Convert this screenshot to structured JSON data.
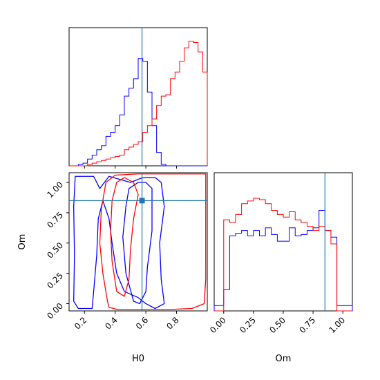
{
  "chart_data": {
    "type": "corner",
    "parameters": [
      "H0",
      "Om"
    ],
    "truth": {
      "H0": 0.575,
      "Om": 0.85,
      "color": "#1f77b4"
    },
    "colors": {
      "blue": "#0000ff",
      "red": "#ff0000",
      "truth": "#1f77b4"
    },
    "grid": false,
    "panels": [
      {
        "id": "H0_hist",
        "type": "step",
        "xlim": [
          0.1,
          1.0
        ],
        "xticks": [
          0.2,
          0.4,
          0.6,
          0.8
        ],
        "bin_edges": [
          0.1,
          0.13,
          0.16,
          0.19,
          0.22,
          0.25,
          0.28,
          0.31,
          0.34,
          0.37,
          0.4,
          0.43,
          0.46,
          0.49,
          0.52,
          0.55,
          0.58,
          0.61,
          0.64,
          0.67,
          0.7,
          0.73,
          0.76,
          0.79,
          0.82,
          0.85,
          0.88,
          0.91,
          0.94,
          0.97,
          1.0
        ],
        "series": [
          {
            "name": "",
            "color": "#0000ff",
            "values": [
              0,
              0,
              0.01,
              0.02,
              0.05,
              0.08,
              0.12,
              0.15,
              0.22,
              0.25,
              0.3,
              0.38,
              0.52,
              0.58,
              0.65,
              0.8,
              0.78,
              0.55,
              0.3,
              0.1,
              0.01,
              0,
              0,
              0,
              0,
              0,
              0,
              0,
              0,
              0
            ]
          },
          {
            "name": "",
            "color": "#ff0000",
            "values": [
              0,
              0,
              0,
              0,
              0.01,
              0.02,
              0.03,
              0.04,
              0.05,
              0.06,
              0.07,
              0.08,
              0.12,
              0.14,
              0.16,
              0.18,
              0.25,
              0.3,
              0.35,
              0.45,
              0.52,
              0.53,
              0.65,
              0.7,
              0.78,
              0.88,
              0.93,
              0.92,
              0.85,
              0.7
            ]
          }
        ]
      },
      {
        "id": "Om_hist",
        "type": "step",
        "xlim": [
          -0.08,
          1.08
        ],
        "xticks": [
          0.0,
          0.25,
          0.5,
          0.75,
          1.0
        ],
        "xticklabels": [
          "0.00",
          "0.25",
          "0.50",
          "0.75",
          "1.00"
        ],
        "xlabel": "Om",
        "bin_edges": [
          -0.08,
          0,
          0.05,
          0.1,
          0.15,
          0.2,
          0.25,
          0.3,
          0.35,
          0.4,
          0.45,
          0.5,
          0.55,
          0.6,
          0.65,
          0.7,
          0.75,
          0.8,
          0.85,
          0.9,
          0.95,
          1.0,
          1.08
        ],
        "series": [
          {
            "name": "",
            "color": "#0000ff",
            "values": [
              0.04,
              0.16,
              0.56,
              0.58,
              0.6,
              0.56,
              0.6,
              0.56,
              0.62,
              0.57,
              0.52,
              0.52,
              0.62,
              0.56,
              0.57,
              0.6,
              0.62,
              0.75,
              0.6,
              0.55,
              0.04,
              0.04
            ]
          },
          {
            "name": "",
            "color": "#ff0000",
            "values": [
              0,
              0.68,
              0.66,
              0.72,
              0.8,
              0.82,
              0.84,
              0.83,
              0.8,
              0.75,
              0.72,
              0.7,
              0.74,
              0.68,
              0.66,
              0.63,
              0.6,
              0.63,
              0.6,
              0.5,
              0,
              0
            ]
          }
        ]
      },
      {
        "id": "H0_Om",
        "type": "contour",
        "xlim": [
          0.1,
          1.0
        ],
        "ylim": [
          -0.06,
          1.08
        ],
        "xticks": [
          0.2,
          0.4,
          0.6,
          0.8
        ],
        "yticks": [
          0.0,
          0.25,
          0.5,
          0.75,
          1.0
        ],
        "yticklabels": [
          "0.00",
          "0.25",
          "0.50",
          "0.75",
          "1.00"
        ],
        "xlabel": "H0",
        "ylabel": "Om",
        "contours": [
          {
            "color": "#0000ff",
            "level": "outer",
            "points": [
              [
                0.13,
                0.02
              ],
              [
                0.135,
                0.4
              ],
              [
                0.13,
                0.8
              ],
              [
                0.14,
                1.05
              ],
              [
                0.26,
                1.05
              ],
              [
                0.3,
                0.95
              ],
              [
                0.36,
                1.05
              ],
              [
                0.5,
                1.0
              ],
              [
                0.58,
                1.04
              ],
              [
                0.66,
                1.04
              ],
              [
                0.7,
                1.0
              ],
              [
                0.72,
                0.8
              ],
              [
                0.69,
                0.5
              ],
              [
                0.7,
                0.2
              ],
              [
                0.72,
                0.0
              ],
              [
                0.66,
                -0.04
              ],
              [
                0.6,
                0.0
              ],
              [
                0.55,
                0.05
              ],
              [
                0.46,
                0.1
              ],
              [
                0.41,
                0.25
              ],
              [
                0.38,
                0.5
              ],
              [
                0.36,
                0.7
              ],
              [
                0.32,
                0.85
              ],
              [
                0.29,
                0.7
              ],
              [
                0.28,
                0.4
              ],
              [
                0.26,
                0.1
              ],
              [
                0.25,
                -0.04
              ],
              [
                0.16,
                -0.04
              ]
            ]
          },
          {
            "color": "#0000ff",
            "level": "inner",
            "points": [
              [
                0.52,
                0.02
              ],
              [
                0.47,
                0.25
              ],
              [
                0.45,
                0.55
              ],
              [
                0.47,
                0.8
              ],
              [
                0.49,
                0.95
              ],
              [
                0.55,
                1.0
              ],
              [
                0.6,
                1.0
              ],
              [
                0.64,
                0.95
              ],
              [
                0.64,
                0.6
              ],
              [
                0.61,
                0.3
              ],
              [
                0.6,
                0.1
              ],
              [
                0.56,
                0.0
              ]
            ]
          },
          {
            "color": "#ff0000",
            "level": "outer",
            "points": [
              [
                0.35,
                0.02
              ],
              [
                0.32,
                0.25
              ],
              [
                0.3,
                0.5
              ],
              [
                0.31,
                0.78
              ],
              [
                0.34,
                1.0
              ],
              [
                0.4,
                1.06
              ],
              [
                0.55,
                1.07
              ],
              [
                0.7,
                1.07
              ],
              [
                0.85,
                1.07
              ],
              [
                0.99,
                1.07
              ],
              [
                0.99,
                0.8
              ],
              [
                0.99,
                0.5
              ],
              [
                0.99,
                0.2
              ],
              [
                0.98,
                0.0
              ],
              [
                0.9,
                -0.04
              ],
              [
                0.72,
                -0.05
              ],
              [
                0.55,
                -0.05
              ],
              [
                0.42,
                -0.05
              ],
              [
                0.36,
                -0.03
              ]
            ]
          },
          {
            "color": "#ff0000",
            "level": "inner",
            "points": [
              [
                0.41,
                0.1
              ],
              [
                0.38,
                0.35
              ],
              [
                0.37,
                0.6
              ],
              [
                0.38,
                0.85
              ],
              [
                0.41,
                1.0
              ],
              [
                0.46,
                1.04
              ],
              [
                0.52,
                1.0
              ],
              [
                0.55,
                0.9
              ],
              [
                0.52,
                0.7
              ],
              [
                0.5,
                0.45
              ],
              [
                0.49,
                0.2
              ],
              [
                0.46,
                0.06
              ]
            ]
          }
        ]
      }
    ]
  }
}
